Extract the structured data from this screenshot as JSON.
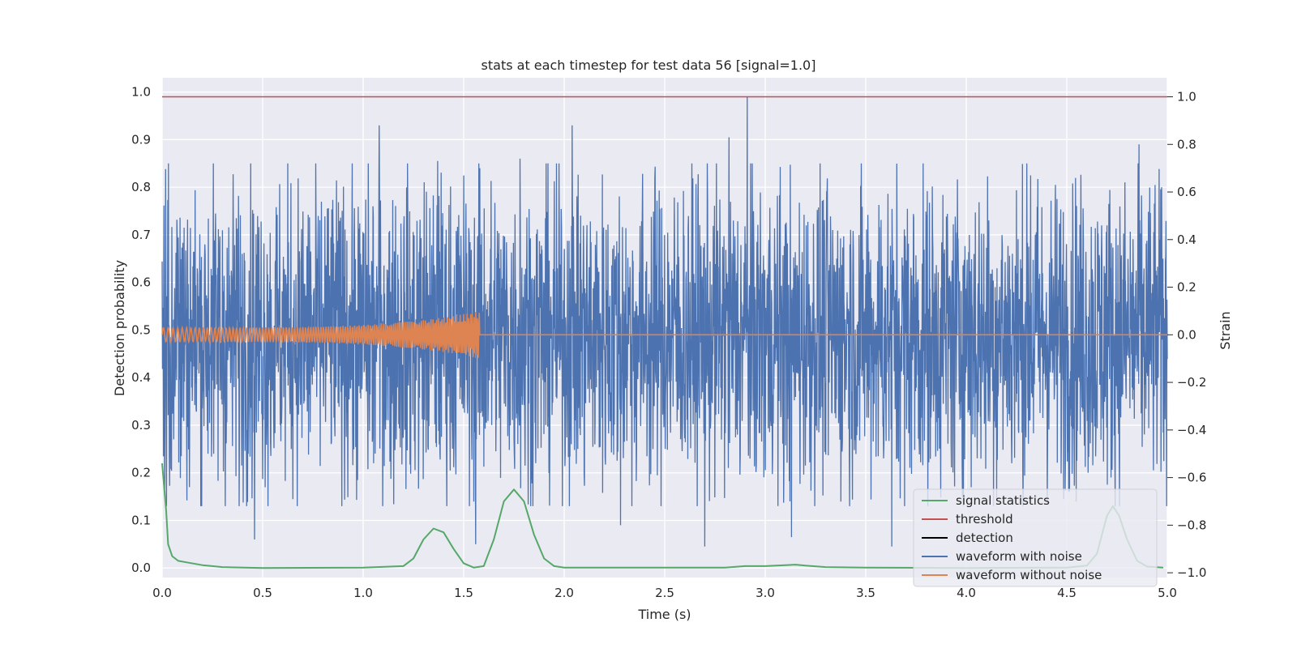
{
  "chart_data": {
    "type": "line",
    "title": "stats at each timestep for test data 56 [signal=1.0]",
    "xlabel": "Time (s)",
    "ylabel": "Detection probability",
    "ylabel_right": "Strain",
    "xlim": [
      0.0,
      5.0
    ],
    "ylim": [
      -0.02,
      1.03
    ],
    "ylim_right": [
      -1.02,
      1.08
    ],
    "xticks": [
      "0.0",
      "0.5",
      "1.0",
      "1.5",
      "2.0",
      "2.5",
      "3.0",
      "3.5",
      "4.0",
      "4.5",
      "5.0"
    ],
    "yticks": [
      "0.0",
      "0.1",
      "0.2",
      "0.3",
      "0.4",
      "0.5",
      "0.6",
      "0.7",
      "0.8",
      "0.9",
      "1.0"
    ],
    "yticks_right": [
      "−1.0",
      "−0.8",
      "−0.6",
      "−0.4",
      "−0.2",
      "0.0",
      "0.2",
      "0.4",
      "0.6",
      "0.8",
      "1.0"
    ],
    "grid": true,
    "legend_position": "lower-right",
    "legend": [
      "signal statistics",
      "threshold",
      "detection",
      "waveform with noise",
      "waveform without noise"
    ],
    "colors": {
      "signal_statistics": "#55a868",
      "threshold": "#c44e52",
      "detection": "#000000",
      "waveform_with_noise": "#4c72b0",
      "waveform_without_noise": "#dd8452",
      "axes_background": "#eaeaf2"
    },
    "series": [
      {
        "name": "signal statistics",
        "axis": "left",
        "x": [
          0.0,
          0.02,
          0.03,
          0.05,
          0.08,
          0.12,
          0.2,
          0.3,
          0.5,
          1.0,
          1.2,
          1.25,
          1.3,
          1.35,
          1.4,
          1.45,
          1.5,
          1.55,
          1.6,
          1.65,
          1.7,
          1.75,
          1.8,
          1.85,
          1.9,
          1.95,
          2.0,
          2.5,
          2.8,
          2.9,
          3.0,
          3.1,
          3.15,
          3.2,
          3.3,
          3.5,
          4.0,
          4.5,
          4.6,
          4.65,
          4.7,
          4.73,
          4.76,
          4.8,
          4.85,
          4.9,
          4.98
        ],
        "y": [
          0.22,
          0.12,
          0.05,
          0.025,
          0.015,
          0.012,
          0.006,
          0.002,
          0.0,
          0.001,
          0.004,
          0.02,
          0.06,
          0.083,
          0.075,
          0.04,
          0.01,
          0.001,
          0.004,
          0.06,
          0.14,
          0.165,
          0.14,
          0.07,
          0.02,
          0.004,
          0.001,
          0.001,
          0.001,
          0.004,
          0.004,
          0.006,
          0.007,
          0.005,
          0.002,
          0.001,
          0.0,
          0.001,
          0.005,
          0.03,
          0.11,
          0.13,
          0.11,
          0.06,
          0.015,
          0.003,
          0.001
        ]
      },
      {
        "name": "threshold",
        "axis": "left",
        "x": [
          0.0,
          5.0
        ],
        "y": [
          0.99,
          0.99
        ]
      },
      {
        "name": "detection",
        "axis": "left",
        "x": [],
        "y": []
      },
      {
        "name": "waveform with noise",
        "axis": "right",
        "description_values": "noise oscillating roughly between -0.7 and 0.7 strain",
        "peaks": [
          {
            "x": 0.46,
            "y": -0.86
          },
          {
            "x": 1.08,
            "y": 0.88
          },
          {
            "x": 1.37,
            "y": 0.73
          },
          {
            "x": 1.56,
            "y": -0.88
          },
          {
            "x": 1.58,
            "y": 0.7
          },
          {
            "x": 1.78,
            "y": 0.74
          },
          {
            "x": 2.04,
            "y": 0.88
          },
          {
            "x": 2.28,
            "y": -0.8
          },
          {
            "x": 2.7,
            "y": -0.89
          },
          {
            "x": 2.82,
            "y": 0.83
          },
          {
            "x": 2.91,
            "y": 1.0
          },
          {
            "x": 3.13,
            "y": -0.85
          },
          {
            "x": 3.63,
            "y": -0.89
          },
          {
            "x": 4.32,
            "y": 0.67
          },
          {
            "x": 4.86,
            "y": 0.8
          }
        ]
      },
      {
        "name": "waveform without noise",
        "axis": "right",
        "description_values": "chirp around 0.0 strain growing to about ±0.1 at 1.58 s, then flat at 0.0"
      }
    ]
  }
}
